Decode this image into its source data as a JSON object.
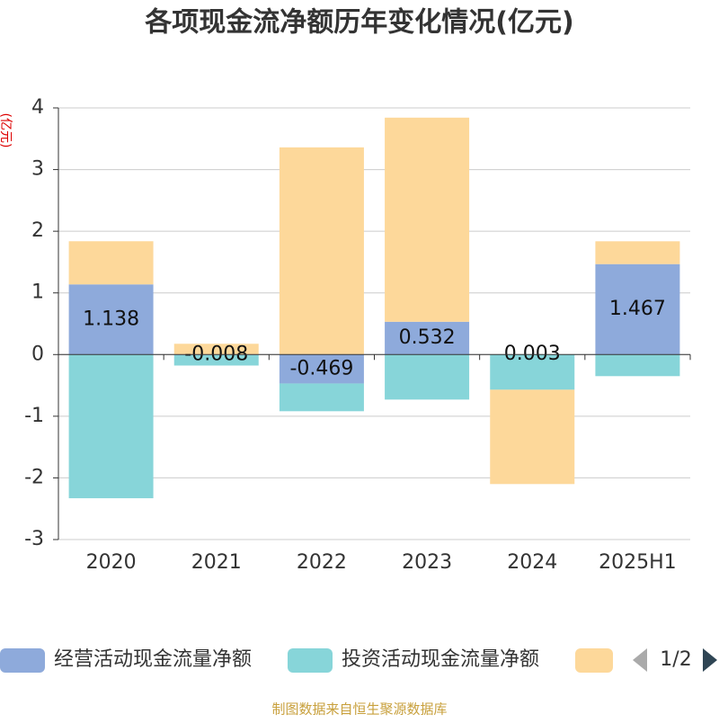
{
  "chart_data": {
    "type": "bar",
    "stacked": true,
    "title": "各项现金流净额历年变化情况(亿元)",
    "y_label": "(亿元)",
    "categories": [
      "2020",
      "2021",
      "2022",
      "2023",
      "2024",
      "2025H1"
    ],
    "series": [
      {
        "name": "经营活动现金流量净额",
        "color": "#8eaadb",
        "values": [
          1.138,
          -0.008,
          -0.469,
          0.532,
          0.003,
          1.467
        ],
        "labels": true
      },
      {
        "name": "投资活动现金流量净额",
        "color": "#87d5d9",
        "values": [
          -2.33,
          -0.17,
          -0.45,
          -0.73,
          -0.57,
          -0.35
        ]
      },
      {
        "color": "#fdd89a",
        "values": [
          0.7,
          0.175,
          3.36,
          3.31,
          -1.53,
          0.37
        ]
      }
    ],
    "ylim": [
      -3,
      4
    ],
    "yticks": [
      -3,
      -2,
      -1,
      0,
      1,
      2,
      3,
      4
    ],
    "grid": true,
    "legend_page": "1/2",
    "source": "制图数据来自恒生聚源数据库"
  }
}
